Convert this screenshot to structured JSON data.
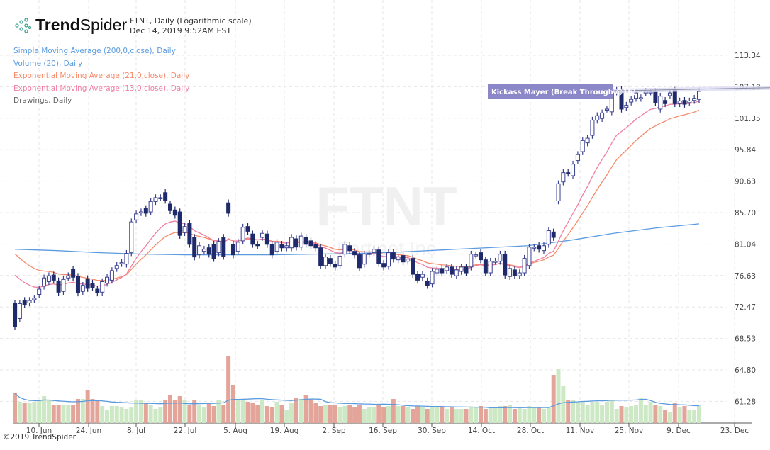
{
  "header": {
    "brand": "TrendSpider",
    "brand_bold": "Trend",
    "brand_light": "Spider",
    "title": "FTNT, Daily (Logarithmic scale)",
    "timestamp": "Dec 14, 2019 9:52AM EST"
  },
  "legend": [
    {
      "label": "Simple Moving Average (200,0,close), Daily",
      "color": "#5b9be0"
    },
    {
      "label": "Volume (20), Daily",
      "color": "#5b9be0"
    },
    {
      "label": "Exponential Moving Average (21,0,close), Daily",
      "color": "#f58a6a"
    },
    {
      "label": "Exponential Moving Average (13,0,close), Daily",
      "color": "#f07fa0"
    },
    {
      "label": "Drawings, Daily",
      "color": "#666666"
    }
  ],
  "watermark": {
    "symbol": "FTNT",
    "name": "Fortinet Inc"
  },
  "drawing": {
    "label": "Kickass Mayer (Break Through @1h)",
    "color": "#8b87c8"
  },
  "footer": {
    "copyright": "©2019 TrendSpider"
  },
  "chart_data": {
    "type": "candlestick",
    "scale": "log",
    "y_ticks": [
      "113.34",
      "107.18",
      "101.35",
      "95.84",
      "90.63",
      "85.70",
      "81.04",
      "76.63",
      "72.47",
      "68.53",
      "64.80",
      "61.28"
    ],
    "x_ticks": [
      "10. Jun",
      "24. Jun",
      "8. Jul",
      "22. Jul",
      "5. Aug",
      "19. Aug",
      "2. Sep",
      "16. Sep",
      "30. Sep",
      "14. Oct",
      "28. Oct",
      "11. Nov",
      "25. Nov",
      "9. Dec",
      "23. Dec"
    ],
    "grid": true,
    "colors": {
      "up_stroke": "#3a3f8f",
      "down_fill": "#1f2a6b",
      "vol_up": "#cde8c4",
      "vol_down": "#e3a49a",
      "sma200": "#5b9be0",
      "ema21": "#f58a6a",
      "ema13": "#f07fa0",
      "vol_ma": "#5b9be0"
    },
    "sma200": [
      80.3,
      80.1,
      79.8,
      79.6,
      79.5,
      79.5,
      79.5,
      79.6,
      79.7,
      79.9,
      80.2,
      80.5,
      80.8,
      81.6,
      82.6,
      83.4,
      84.0
    ],
    "breakout_line": [
      106.4,
      107.0
    ],
    "candles_o_c_vol": [
      [
        72.9,
        70.0,
        2.1
      ],
      [
        71.0,
        72.9,
        1.5
      ],
      [
        73.3,
        72.8,
        1.4
      ],
      [
        73.0,
        73.3,
        1.4
      ],
      [
        73.4,
        73.6,
        1.5
      ],
      [
        74.1,
        74.8,
        1.6
      ],
      [
        75.2,
        76.3,
        1.9
      ],
      [
        75.8,
        76.6,
        1.6
      ],
      [
        76.7,
        76.0,
        1.3
      ],
      [
        75.9,
        74.4,
        1.3
      ],
      [
        74.5,
        76.1,
        1.3
      ],
      [
        76.3,
        76.6,
        1.3
      ],
      [
        77.5,
        76.4,
        1.3
      ],
      [
        76.5,
        74.3,
        1.7
      ],
      [
        74.5,
        75.3,
        1.7
      ],
      [
        76.2,
        74.9,
        2.3
      ],
      [
        75.6,
        75.0,
        1.7
      ],
      [
        74.8,
        74.3,
        1.6
      ],
      [
        74.4,
        75.8,
        1.2
      ],
      [
        75.6,
        76.4,
        0.9
      ],
      [
        76.0,
        77.3,
        1.2
      ],
      [
        77.6,
        78.0,
        1.2
      ],
      [
        78.3,
        78.4,
        1.1
      ],
      [
        78.2,
        79.7,
        1.0
      ],
      [
        79.8,
        84.3,
        1.1
      ],
      [
        84.6,
        85.5,
        1.6
      ],
      [
        85.7,
        85.8,
        1.6
      ],
      [
        86.3,
        85.6,
        1.4
      ],
      [
        85.8,
        87.4,
        1.3
      ],
      [
        87.4,
        88.0,
        1.0
      ],
      [
        88.0,
        88.0,
        1.1
      ],
      [
        88.8,
        87.6,
        1.6
      ],
      [
        87.0,
        86.0,
        2.0
      ],
      [
        86.1,
        85.3,
        1.6
      ],
      [
        85.8,
        82.3,
        1.9
      ],
      [
        82.7,
        83.6,
        1.6
      ],
      [
        84.1,
        81.0,
        1.3
      ],
      [
        82.0,
        79.2,
        1.6
      ],
      [
        79.5,
        80.8,
        1.3
      ],
      [
        80.0,
        80.3,
        1.1
      ],
      [
        80.5,
        79.6,
        1.4
      ],
      [
        81.0,
        79.0,
        1.2
      ],
      [
        79.8,
        81.4,
        1.6
      ],
      [
        82.0,
        79.3,
        1.3
      ],
      [
        87.2,
        85.6,
        4.7
      ],
      [
        81.0,
        79.5,
        2.7
      ],
      [
        80.0,
        81.3,
        1.7
      ],
      [
        81.5,
        83.5,
        1.6
      ],
      [
        83.6,
        82.9,
        1.5
      ],
      [
        82.5,
        81.0,
        1.4
      ],
      [
        81.0,
        80.8,
        1.3
      ],
      [
        82.0,
        82.6,
        1.6
      ],
      [
        82.5,
        81.0,
        1.2
      ],
      [
        81.0,
        79.5,
        1.1
      ],
      [
        80.0,
        81.3,
        1.5
      ],
      [
        81.0,
        80.5,
        1.3
      ],
      [
        80.5,
        80.8,
        0.9
      ],
      [
        80.5,
        82.0,
        1.4
      ],
      [
        81.8,
        80.6,
        1.8
      ],
      [
        80.6,
        82.2,
        1.7
      ],
      [
        82.0,
        81.0,
        2.0
      ],
      [
        81.5,
        80.8,
        1.7
      ],
      [
        81.0,
        80.5,
        1.4
      ],
      [
        80.5,
        78.0,
        1.2
      ],
      [
        78.0,
        79.2,
        1.3
      ],
      [
        79.0,
        78.3,
        1.3
      ],
      [
        78.2,
        77.8,
        1.3
      ],
      [
        78.0,
        79.3,
        1.1
      ],
      [
        79.6,
        81.0,
        1.2
      ],
      [
        80.8,
        80.1,
        1.3
      ],
      [
        80.0,
        79.5,
        1.1
      ],
      [
        79.5,
        77.7,
        1.3
      ],
      [
        78.2,
        79.6,
        1.0
      ],
      [
        79.6,
        79.7,
        1.1
      ],
      [
        79.8,
        80.3,
        1.1
      ],
      [
        80.2,
        78.3,
        1.3
      ],
      [
        78.3,
        77.8,
        1.1
      ],
      [
        77.9,
        79.8,
        1.2
      ],
      [
        79.8,
        78.9,
        1.7
      ],
      [
        78.8,
        79.2,
        1.2
      ],
      [
        79.4,
        78.5,
        1.2
      ],
      [
        78.6,
        78.9,
        1.1
      ],
      [
        79.0,
        76.8,
        1.0
      ],
      [
        76.8,
        76.0,
        1.2
      ],
      [
        76.4,
        76.8,
        1.1
      ],
      [
        75.9,
        75.3,
        1.0
      ],
      [
        75.5,
        77.2,
        1.1
      ],
      [
        77.0,
        77.5,
        1.1
      ],
      [
        77.6,
        77.0,
        1.1
      ],
      [
        77.3,
        77.8,
        1.0
      ],
      [
        77.8,
        76.8,
        1.1
      ],
      [
        76.6,
        77.4,
        1.0
      ],
      [
        77.2,
        77.8,
        1.0
      ],
      [
        77.8,
        77.0,
        1.0
      ],
      [
        77.8,
        79.6,
        1.1
      ],
      [
        79.5,
        79.5,
        1.1
      ],
      [
        79.8,
        78.8,
        1.2
      ],
      [
        78.8,
        77.0,
        1.0
      ],
      [
        77.0,
        78.6,
        1.1
      ],
      [
        78.6,
        78.6,
        1.1
      ],
      [
        78.6,
        79.6,
        1.2
      ],
      [
        79.6,
        76.7,
        1.2
      ],
      [
        76.5,
        77.6,
        1.3
      ],
      [
        77.4,
        76.6,
        1.0
      ],
      [
        76.6,
        77.0,
        1.1
      ],
      [
        77.0,
        79.0,
        1.0
      ],
      [
        78.0,
        80.6,
        1.2
      ],
      [
        80.5,
        80.6,
        1.1
      ],
      [
        80.8,
        80.3,
        1.1
      ],
      [
        80.1,
        80.8,
        1.0
      ],
      [
        81.0,
        83.0,
        1.1
      ],
      [
        82.8,
        82.0,
        3.4
      ],
      [
        87.5,
        90.2,
        3.8
      ],
      [
        90.5,
        92.0,
        2.6
      ],
      [
        92.0,
        91.9,
        1.6
      ],
      [
        91.5,
        93.4,
        1.6
      ],
      [
        94.0,
        95.0,
        1.5
      ],
      [
        95.5,
        97.4,
        1.5
      ],
      [
        97.0,
        97.8,
        1.3
      ],
      [
        98.3,
        101.0,
        1.5
      ],
      [
        101.0,
        101.8,
        1.5
      ],
      [
        101.3,
        102.3,
        1.3
      ],
      [
        103.0,
        103.0,
        1.5
      ],
      [
        102.5,
        106.0,
        1.6
      ],
      [
        106.2,
        106.5,
        1.0
      ],
      [
        106.6,
        103.0,
        1.2
      ],
      [
        103.3,
        103.7,
        1.1
      ],
      [
        104.3,
        104.8,
        1.2
      ],
      [
        105.0,
        106.0,
        1.3
      ],
      [
        105.0,
        105.1,
        1.8
      ],
      [
        106.0,
        106.3,
        1.3
      ],
      [
        106.2,
        106.2,
        1.5
      ],
      [
        106.3,
        104.2,
        1.3
      ],
      [
        103.0,
        105.4,
        1.2
      ],
      [
        104.6,
        104.0,
        0.9
      ],
      [
        105.5,
        106.0,
        0.8
      ],
      [
        106.5,
        104.0,
        1.4
      ],
      [
        104.0,
        104.5,
        1.1
      ],
      [
        104.6,
        103.9,
        1.2
      ],
      [
        104.2,
        104.5,
        0.9
      ],
      [
        104.6,
        105.0,
        0.9
      ],
      [
        104.8,
        106.3,
        1.3
      ]
    ]
  }
}
